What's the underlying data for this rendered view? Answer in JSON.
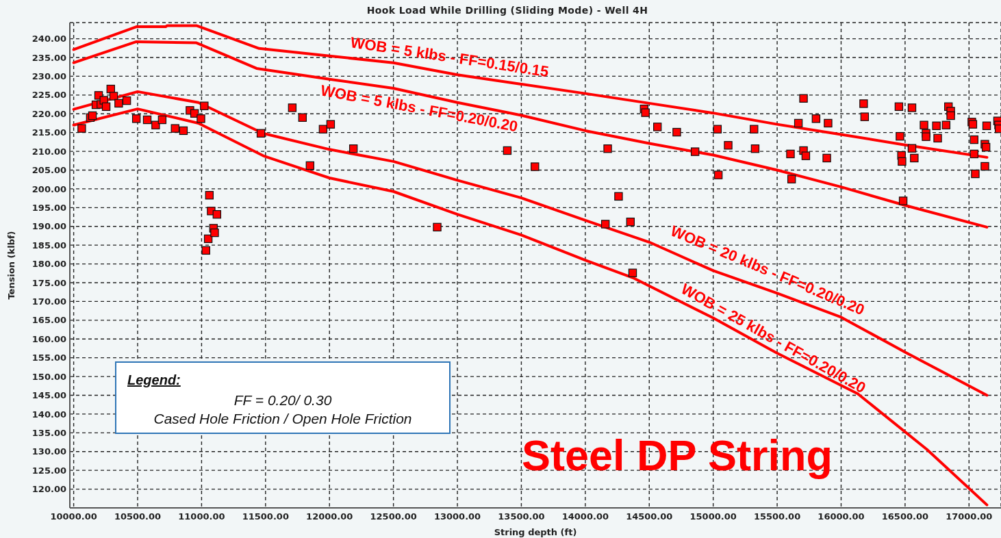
{
  "chart_data": {
    "type": "line",
    "title": "Hook Load While Drilling (Sliding Mode) - Well 4H",
    "xlabel": "String depth (ft)",
    "ylabel": "Tension (klbf)",
    "xlim": [
      9970,
      17250
    ],
    "ylim": [
      115,
      244.3
    ],
    "xticks": [
      {
        "value": 10000,
        "label": "10000.00"
      },
      {
        "value": 10500,
        "label": "10500.00"
      },
      {
        "value": 11000,
        "label": "11000.00"
      },
      {
        "value": 11500,
        "label": "11500.00"
      },
      {
        "value": 12000,
        "label": "12000.00"
      },
      {
        "value": 12500,
        "label": "12500.00"
      },
      {
        "value": 13000,
        "label": "13000.00"
      },
      {
        "value": 13500,
        "label": "13500.00"
      },
      {
        "value": 14000,
        "label": "14000.00"
      },
      {
        "value": 14500,
        "label": "14500.00"
      },
      {
        "value": 15000,
        "label": "15000.00"
      },
      {
        "value": 15500,
        "label": "15500.00"
      },
      {
        "value": 16000,
        "label": "16000.00"
      },
      {
        "value": 16500,
        "label": "16500.00"
      },
      {
        "value": 17000,
        "label": "17000.00"
      }
    ],
    "yticks": [
      {
        "value": 120,
        "label": "120.00"
      },
      {
        "value": 125,
        "label": "125.00"
      },
      {
        "value": 130,
        "label": "130.00"
      },
      {
        "value": 135,
        "label": "135.00"
      },
      {
        "value": 140,
        "label": "140.00"
      },
      {
        "value": 145,
        "label": "145.00"
      },
      {
        "value": 150,
        "label": "150.00"
      },
      {
        "value": 155,
        "label": "155.00"
      },
      {
        "value": 160,
        "label": "160.00"
      },
      {
        "value": 165,
        "label": "165.00"
      },
      {
        "value": 170,
        "label": "170.00"
      },
      {
        "value": 175,
        "label": "175.00"
      },
      {
        "value": 180,
        "label": "180.00"
      },
      {
        "value": 185,
        "label": "185.00"
      },
      {
        "value": 190,
        "label": "190.00"
      },
      {
        "value": 195,
        "label": "195.00"
      },
      {
        "value": 200,
        "label": "200.00"
      },
      {
        "value": 205,
        "label": "205.00"
      },
      {
        "value": 210,
        "label": "210.00"
      },
      {
        "value": 215,
        "label": "215.00"
      },
      {
        "value": 220,
        "label": "220.00"
      },
      {
        "value": 225,
        "label": "225.00"
      },
      {
        "value": 230,
        "label": "230.00"
      },
      {
        "value": 235,
        "label": "235.00"
      },
      {
        "value": 240,
        "label": "240.00"
      }
    ],
    "grid": true,
    "annotations": [
      "Legend:",
      "FF = 0.20/ 0.30",
      "Cased Hole Friction / Open Hole Friction",
      "Steel DP String"
    ],
    "series": [
      {
        "name": "WOB = 5 klbs - FF=0.15/0.15",
        "color": "#ff0000",
        "x": [
          10000,
          10490,
          10720,
          10730,
          10960,
          11450,
          12000,
          12500,
          13000,
          13500,
          14000,
          14500,
          15000,
          15500,
          16000,
          16500,
          17140
        ],
        "values": [
          237.1,
          243.2,
          243.2,
          243.5,
          243.5,
          237.4,
          235.4,
          233.6,
          230.4,
          227.9,
          225.4,
          222.8,
          220.2,
          217.2,
          214.5,
          211.7,
          208.4
        ]
      },
      {
        "name": "WOB = 5 klbs - FF=0.20/0.20",
        "color": "#ff0000",
        "x": [
          10000,
          10490,
          10960,
          11430,
          12000,
          12500,
          13000,
          13500,
          14000,
          14500,
          15000,
          15500,
          16000,
          16500,
          17140
        ],
        "values": [
          233.6,
          239.2,
          238.9,
          232.1,
          229.2,
          226.8,
          223.0,
          219.6,
          215.5,
          212.1,
          209.0,
          205.0,
          200.5,
          195.6,
          189.8
        ]
      },
      {
        "name": "WOB = 20 klbs - FF=0.20/0.20",
        "color": "#ff0000",
        "x": [
          10000,
          10500,
          10975,
          11480,
          12000,
          12500,
          13000,
          13500,
          14000,
          14500,
          15000,
          15500,
          16000,
          16500,
          17140
        ],
        "values": [
          221.2,
          225.9,
          223.0,
          214.8,
          210.5,
          207.3,
          202.3,
          197.6,
          191.6,
          185.8,
          178.2,
          172.2,
          165.8,
          156.5,
          145.0
        ]
      },
      {
        "name": "WOB = 25 klbs - FF=0.20/0.20",
        "color": "#ff0000",
        "x": [
          10000,
          10500,
          10975,
          11490,
          12000,
          12500,
          13000,
          13500,
          14000,
          14380,
          15000,
          15500,
          16130,
          16670,
          17140
        ],
        "values": [
          217.0,
          221.3,
          217.5,
          208.7,
          202.9,
          199.3,
          193.2,
          187.7,
          181.0,
          176.2,
          165.6,
          156.2,
          145.4,
          130.6,
          115.8
        ]
      },
      {
        "type": "scatter",
        "color": "#ff0000",
        "marker": "square",
        "x": [
          10063,
          10130,
          10147,
          10174,
          10195,
          10213,
          10236,
          10254,
          10290,
          10313,
          10352,
          10415,
          10490,
          10575,
          10641,
          10692,
          10793,
          10858,
          10909,
          10945,
          10995,
          11021,
          11034,
          11052,
          11061,
          11075,
          11093,
          11102,
          11120,
          11464,
          11709,
          11789,
          11848,
          11950,
          12009,
          12187,
          12842,
          13390,
          13606,
          14157,
          14175,
          14260,
          14353,
          14370,
          14460,
          14470,
          14564,
          14715,
          14858,
          15033,
          15040,
          15117,
          15319,
          15328,
          15604,
          15613,
          15666,
          15706,
          15706,
          15724,
          15804,
          15888,
          15898,
          16176,
          16184,
          16452,
          16460,
          16472,
          16476,
          16485,
          16554,
          16554,
          16572,
          16648,
          16664,
          16664,
          16745,
          16755,
          16821,
          16839,
          16857,
          16857,
          17022,
          17030,
          17040,
          17040,
          17049,
          17124,
          17124,
          17133,
          17138,
          17223,
          17231,
          17235
        ],
        "values": [
          216.1,
          219.0,
          219.5,
          222.4,
          224.9,
          222.5,
          223.6,
          221.9,
          226.6,
          224.7,
          222.8,
          223.5,
          218.7,
          218.4,
          217.0,
          218.4,
          216.1,
          215.5,
          220.9,
          220.1,
          218.7,
          222.1,
          183.6,
          186.7,
          198.3,
          194.1,
          189.5,
          188.3,
          193.2,
          214.8,
          221.6,
          219.0,
          206.2,
          215.9,
          217.2,
          210.7,
          189.8,
          210.2,
          205.9,
          190.6,
          210.7,
          198.0,
          191.2,
          177.6,
          221.3,
          220.3,
          216.5,
          215.1,
          209.9,
          215.9,
          203.7,
          211.6,
          215.9,
          210.7,
          209.3,
          202.6,
          217.5,
          224.1,
          210.2,
          208.8,
          218.7,
          208.2,
          217.5,
          222.7,
          219.2,
          221.9,
          214.0,
          208.9,
          207.3,
          196.8,
          221.6,
          210.8,
          208.2,
          217.0,
          214.8,
          213.9,
          216.8,
          213.5,
          217.0,
          221.9,
          220.7,
          219.5,
          217.8,
          217.2,
          213.1,
          209.3,
          204.0,
          211.9,
          206.0,
          211.1,
          216.8,
          218.1,
          217.0,
          216.0
        ]
      }
    ]
  }
}
